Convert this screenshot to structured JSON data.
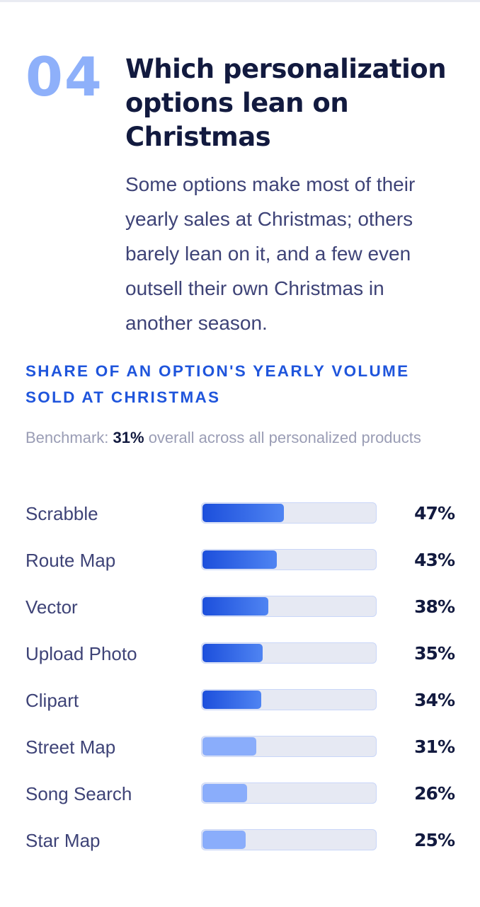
{
  "section": {
    "number": "04",
    "title": "Which personalization options lean on Christmas",
    "description": "Some options make most of their yearly sales at Christmas; others barely lean on it, and a few even outsell their own Christmas in another season."
  },
  "chart_data": {
    "type": "bar",
    "orientation": "horizontal",
    "title": "SHARE OF AN OPTION'S YEARLY VOLUME SOLD AT CHRISTMAS",
    "benchmark": {
      "prefix": "Benchmark:",
      "value_label": "31%",
      "value": 31,
      "suffix": "overall across all personalized products"
    },
    "unit": "%",
    "xlim": [
      0,
      100
    ],
    "categories": [
      "Scrabble",
      "Route Map",
      "Vector",
      "Upload Photo",
      "Clipart",
      "Street Map",
      "Song Search",
      "Star Map"
    ],
    "values": [
      47,
      43,
      38,
      35,
      34,
      31,
      26,
      25
    ],
    "value_labels": [
      "47%",
      "43%",
      "38%",
      "35%",
      "34%",
      "31%",
      "26%",
      "25%"
    ],
    "colors": {
      "above_benchmark": "#1c4fdc",
      "at_or_below_benchmark": "#8aadfb",
      "track": "#e6e9f3"
    }
  }
}
